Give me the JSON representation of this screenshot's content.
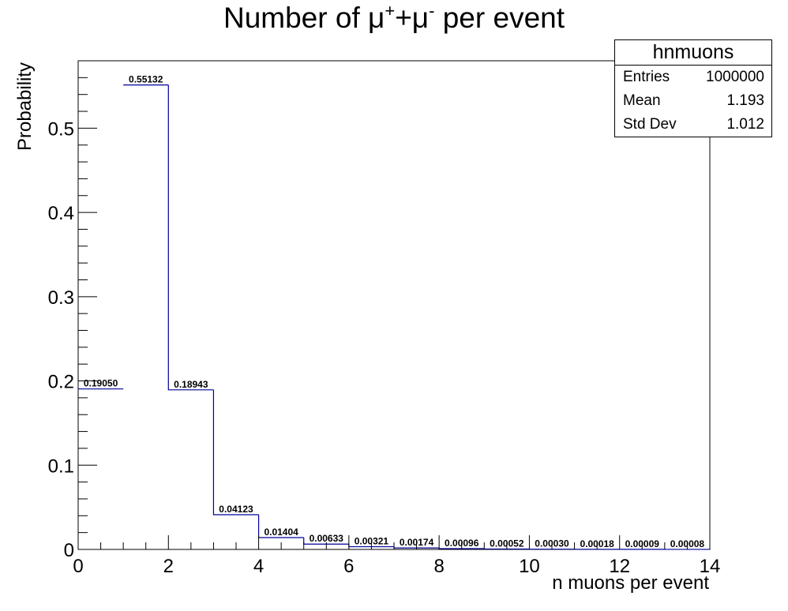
{
  "chart_data": {
    "type": "bar",
    "title": "Number of μ⁺+μ⁻ per event",
    "title_parts": {
      "prefix": "Number of ",
      "mu1": "μ",
      "sup1": "+",
      "mid": "+μ",
      "sup2": "-",
      "suffix": " per event"
    },
    "xlabel": "n muons per event",
    "ylabel": "Probability",
    "xlim": [
      0,
      14
    ],
    "ylim": [
      0,
      0.58
    ],
    "x_ticks": [
      "0",
      "2",
      "4",
      "6",
      "8",
      "10",
      "12",
      "14"
    ],
    "y_ticks": [
      "0",
      "0.1",
      "0.2",
      "0.3",
      "0.4",
      "0.5"
    ],
    "bin_edges": [
      0,
      1,
      2,
      3,
      4,
      5,
      6,
      7,
      8,
      9,
      10,
      11,
      12,
      13,
      14
    ],
    "values": [
      0.1905,
      0.55132,
      0.18943,
      0.04123,
      0.01404,
      0.00633,
      0.00321,
      0.00174,
      0.00096,
      0.00052,
      0.0003,
      0.00018,
      9e-05,
      8e-05
    ],
    "data_labels": [
      "0.19050",
      "0.55132",
      "0.18943",
      "0.04123",
      "0.01404",
      "0.00633",
      "0.00321",
      "0.00174",
      "0.00096",
      "0.00052",
      "0.00030",
      "0.00018",
      "0.00009",
      "0.00008"
    ],
    "line_color": "#000099",
    "legend": "none",
    "grid": false
  },
  "stats_box": {
    "name": "hnmuons",
    "rows": [
      {
        "label": "Entries",
        "value": "1000000"
      },
      {
        "label": "Mean",
        "value": "1.193"
      },
      {
        "label": "Std Dev",
        "value": "1.012"
      }
    ]
  }
}
